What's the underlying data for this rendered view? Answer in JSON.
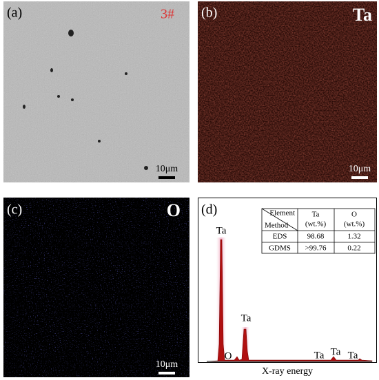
{
  "panels": [
    {
      "label": "(a)",
      "sample": "3#",
      "scale_bar": "10μm"
    },
    {
      "label": "(b)",
      "element": "Ta",
      "scale_bar": "10μm"
    },
    {
      "label": "(c)",
      "element": "O",
      "scale_bar": "10μm"
    },
    {
      "label": "(d)",
      "x_axis_label": "X-ray energy",
      "peak_labels": [
        "Ta",
        "Ta",
        "O",
        "Ta",
        "Ta",
        "Ta"
      ],
      "table": {
        "corner_top": "Element",
        "corner_bottom": "Method",
        "columns": [
          [
            "Ta",
            "(wt.%)"
          ],
          [
            "O",
            "(wt.%)"
          ]
        ],
        "rows": [
          [
            "EDS",
            "98.68",
            "1.32"
          ],
          [
            "GDMS",
            ">99.76",
            "0.22"
          ]
        ]
      }
    }
  ]
}
